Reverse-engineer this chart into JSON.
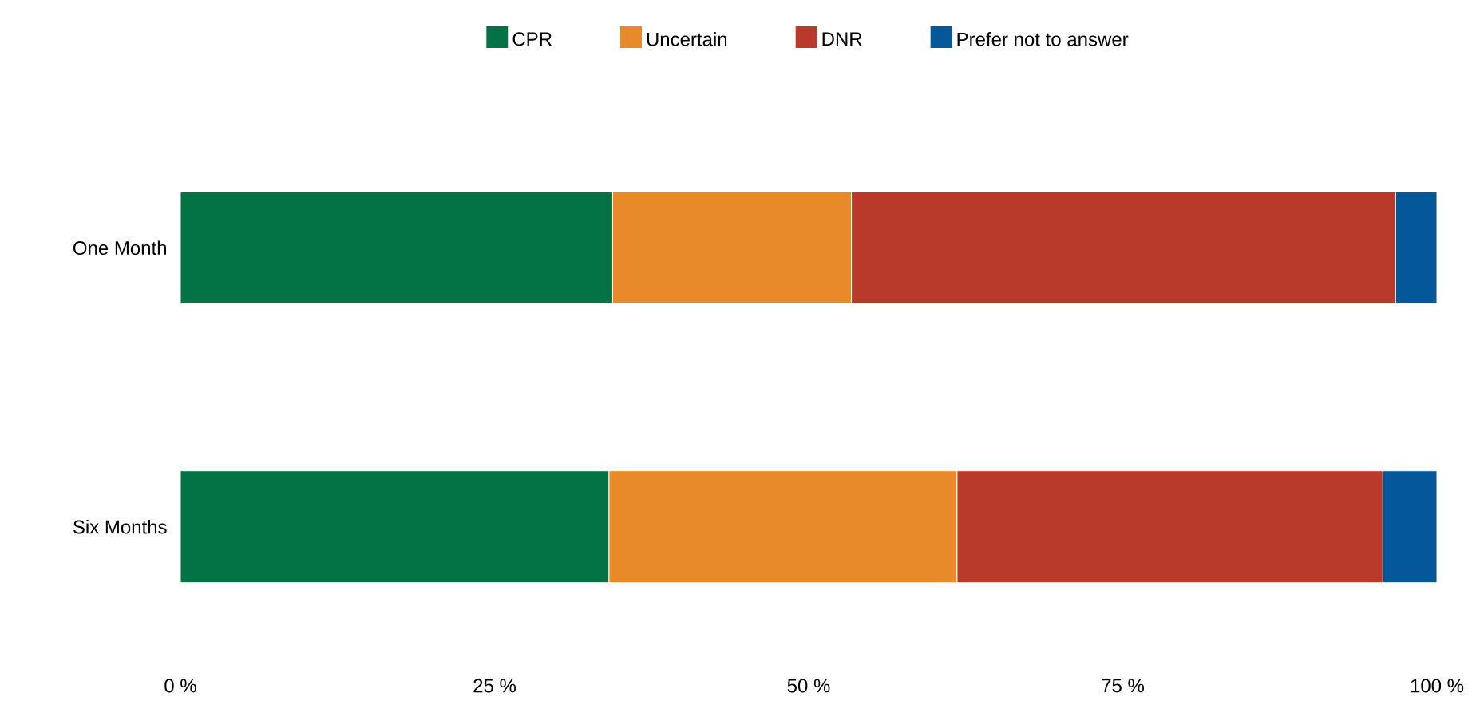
{
  "chart_data": {
    "type": "bar",
    "orientation": "horizontal",
    "stacked": true,
    "categories": [
      "One Month",
      "Six Months"
    ],
    "series": [
      {
        "name": "CPR",
        "color": "#037245",
        "values": [
          34.4,
          34.1
        ]
      },
      {
        "name": "Uncertain",
        "color": "#e98a2a",
        "values": [
          19.0,
          27.7
        ]
      },
      {
        "name": "DNR",
        "color": "#b9392b",
        "values": [
          43.3,
          33.9
        ]
      },
      {
        "name": "Prefer not to answer",
        "color": "#04589a",
        "values": [
          3.3,
          4.3
        ]
      }
    ],
    "xlim": [
      0,
      100
    ],
    "xticks": [
      {
        "value": 0,
        "label": "0 %"
      },
      {
        "value": 25,
        "label": "25 %"
      },
      {
        "value": 50,
        "label": "50 %"
      },
      {
        "value": 75,
        "label": "75 %"
      },
      {
        "value": 100,
        "label": "100 %"
      }
    ],
    "grid": false,
    "legend": "top"
  }
}
